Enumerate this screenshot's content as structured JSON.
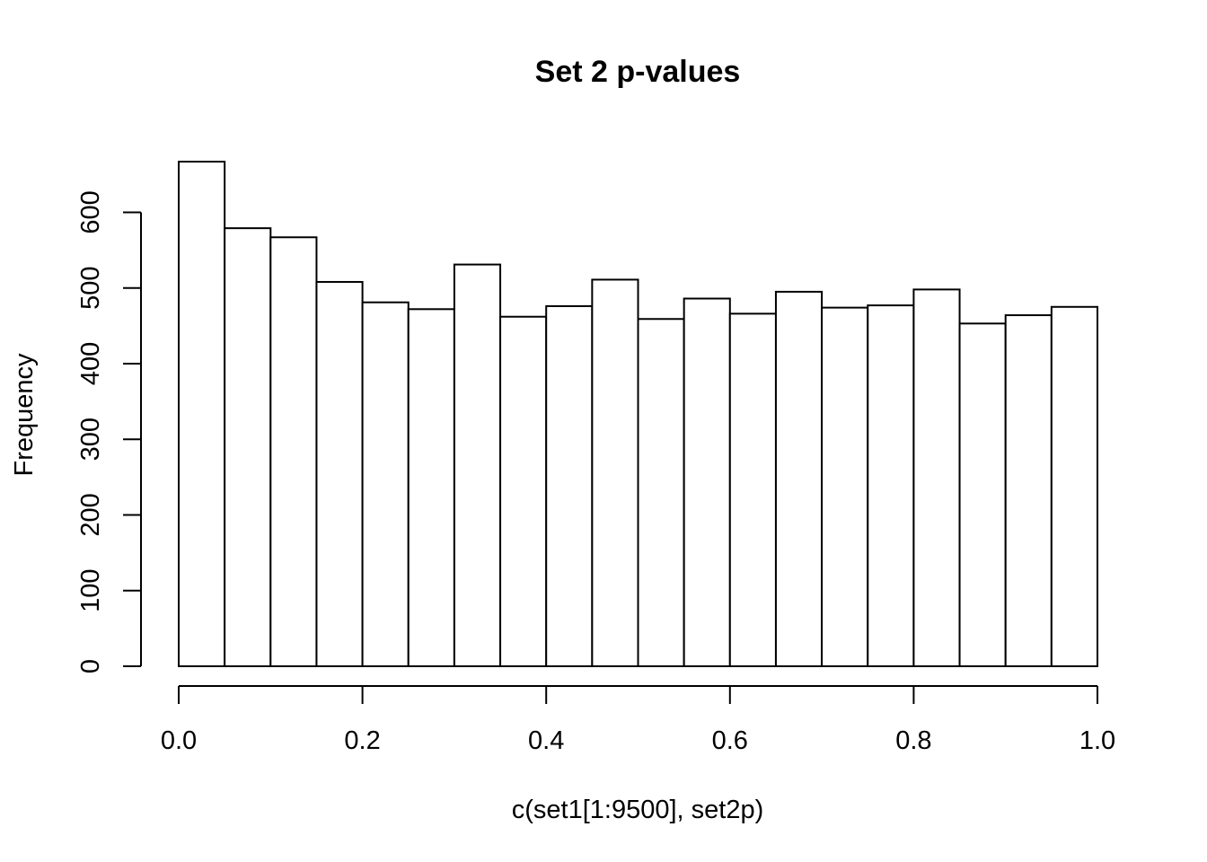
{
  "chart_data": {
    "type": "bar",
    "subtype": "histogram",
    "title": "Set 2 p-values",
    "xlabel": "c(set1[1:9500], set2p)",
    "ylabel": "Frequency",
    "bin_edges": [
      0.0,
      0.05,
      0.1,
      0.15,
      0.2,
      0.25,
      0.3,
      0.35,
      0.4,
      0.45,
      0.5,
      0.55,
      0.6,
      0.65,
      0.7,
      0.75,
      0.8,
      0.85,
      0.9,
      0.95,
      1.0
    ],
    "values": [
      667,
      579,
      567,
      508,
      481,
      472,
      531,
      462,
      476,
      511,
      459,
      486,
      466,
      495,
      474,
      477,
      498,
      453,
      464,
      475
    ],
    "xlim": [
      0.0,
      1.0
    ],
    "ylim": [
      0,
      667
    ],
    "x_ticks": [
      {
        "value": 0.0,
        "label": "0.0"
      },
      {
        "value": 0.2,
        "label": "0.2"
      },
      {
        "value": 0.4,
        "label": "0.4"
      },
      {
        "value": 0.6,
        "label": "0.6"
      },
      {
        "value": 0.8,
        "label": "0.8"
      },
      {
        "value": 1.0,
        "label": "1.0"
      }
    ],
    "y_ticks": [
      {
        "value": 0,
        "label": "0"
      },
      {
        "value": 100,
        "label": "100"
      },
      {
        "value": 200,
        "label": "200"
      },
      {
        "value": 300,
        "label": "300"
      },
      {
        "value": 400,
        "label": "400"
      },
      {
        "value": 500,
        "label": "500"
      },
      {
        "value": 600,
        "label": "600"
      }
    ],
    "bar_fill": "#ffffff",
    "bar_stroke": "#000000",
    "grid": false,
    "legend": "none"
  }
}
